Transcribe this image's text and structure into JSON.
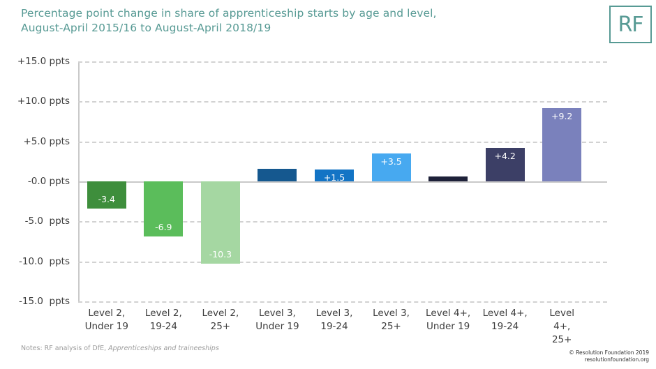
{
  "header": {
    "title_line1": "Percentage point change in share of apprenticeship starts by age and level,",
    "title_line2": "August-April 2015/16 to August-April 2018/19",
    "logo_text": "RF"
  },
  "chart_data": {
    "type": "bar",
    "title": "Percentage point change in share of apprenticeship starts by age and level, August-April 2015/16 to August-April 2018/19",
    "unit": "ppts",
    "ylim": [
      -15,
      15
    ],
    "grid": "horizontal dashed gridlines every 5 ppts, solid zero line, legend none",
    "yticks": [
      {
        "label": "+15.0 ppts",
        "value": 15
      },
      {
        "label": "+10.0 ppts",
        "value": 10
      },
      {
        "label": "+5.0 ppts",
        "value": 5
      },
      {
        "label": "-0.0 ppts",
        "value": 0
      },
      {
        "label": "-5.0  ppts",
        "value": -5
      },
      {
        "label": "-10.0  ppts",
        "value": -10
      },
      {
        "label": "-15.0  ppts",
        "value": -15
      }
    ],
    "categories": [
      [
        "Level 2,",
        "Under 19"
      ],
      [
        "Level 2,",
        "19-24"
      ],
      [
        "Level 2,",
        "25+"
      ],
      [
        "Level 3,",
        "Under 19"
      ],
      [
        "Level 3,",
        "19-24"
      ],
      [
        "Level 3,",
        "25+"
      ],
      [
        "Level 4+,",
        "Under 19"
      ],
      [
        "Level 4+,",
        "19-24"
      ],
      [
        "Level 4+,",
        "25+"
      ]
    ],
    "values": [
      -3.4,
      -6.9,
      -10.3,
      1.6,
      1.5,
      3.5,
      0.6,
      4.2,
      9.2
    ],
    "bar_labels": [
      "-3.4",
      "-6.9",
      "-10.3",
      "",
      "+1.5",
      "+3.5",
      "",
      "+4.2",
      "+9.2"
    ],
    "bar_colors": [
      "#3e8e3c",
      "#5bbd5b",
      "#a5d7a2",
      "#15588f",
      "#1374c5",
      "#47a9f0",
      "#1e2139",
      "#3c3f66",
      "#7a81bc"
    ]
  },
  "footer": {
    "notes_prefix": "Notes: RF analysis of DfE, ",
    "notes_source": "Apprenticeships and traineeships",
    "copyright_line1": "© Resolution Foundation 2019",
    "copyright_line2": "resolutionfoundation.org"
  },
  "colors": {
    "title_teal": "#579a94",
    "grid": "#d2d2d2",
    "axis": "#c9c9c9",
    "tick_text": "#3d3d3d",
    "notes_text": "#9b9b9b"
  }
}
